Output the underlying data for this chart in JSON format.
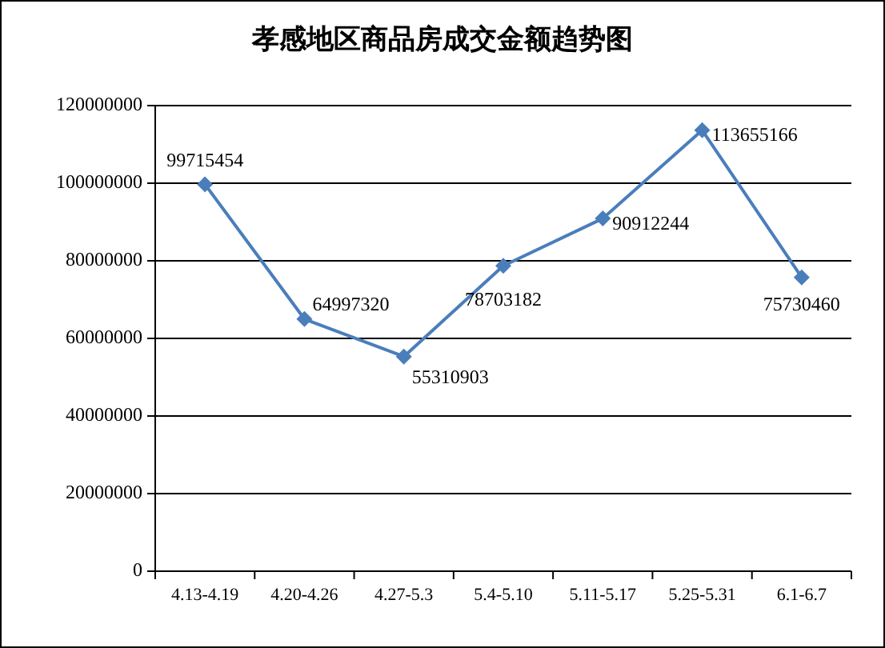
{
  "chart_data": {
    "type": "line",
    "title": "孝感地区商品房成交金额趋势图",
    "categories": [
      "4.13-4.19",
      "4.20-4.26",
      "4.27-5.3",
      "5.4-5.10",
      "5.11-5.17",
      "5.25-5.31",
      "6.1-6.7"
    ],
    "series": [
      {
        "color": "#4a7ebb",
        "values": [
          99715454,
          64997320,
          55310903,
          78703182,
          90912244,
          113655166,
          75730460
        ]
      }
    ],
    "ylim": [
      0,
      120000000
    ],
    "yticks": [
      0,
      20000000,
      40000000,
      60000000,
      80000000,
      100000000,
      120000000
    ],
    "grid": "y",
    "marker": "diamond",
    "line_style": "solid",
    "data_labels": true
  }
}
